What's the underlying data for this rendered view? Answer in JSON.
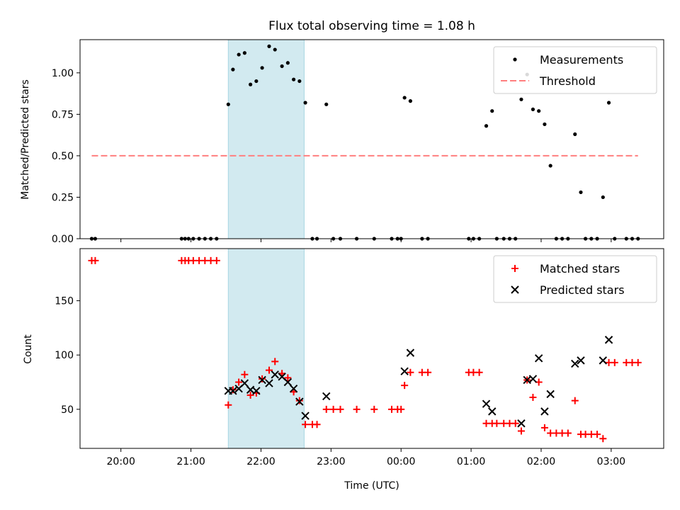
{
  "chart_data": [
    {
      "type": "scatter",
      "title": "Flux total observing time = 1.08 h",
      "ylabel": "Matched/Predicted stars",
      "xlabel": "",
      "ylim": [
        0,
        1.2
      ],
      "yticks": [
        0.0,
        0.25,
        0.5,
        0.75,
        1.0
      ],
      "ytick_labels": [
        "0.00",
        "0.25",
        "0.50",
        "0.75",
        "1.00"
      ],
      "x_range_hours": [
        "19:25",
        "03:45"
      ],
      "shaded_interval": {
        "start": "21:32",
        "end": "22:37",
        "color": "#d2eaf0"
      },
      "legend": {
        "placement": "top-right",
        "entries": [
          "Measurements",
          "Threshold"
        ]
      },
      "series": [
        {
          "name": "Measurements",
          "color": "#000000",
          "marker": "dot",
          "points": [
            [
              "19:35",
              0.0
            ],
            [
              "19:38",
              0.0
            ],
            [
              "20:52",
              0.0
            ],
            [
              "20:55",
              0.0
            ],
            [
              "20:58",
              0.0
            ],
            [
              "21:02",
              0.0
            ],
            [
              "21:07",
              0.0
            ],
            [
              "21:12",
              0.0
            ],
            [
              "21:17",
              0.0
            ],
            [
              "21:22",
              0.0
            ],
            [
              "21:32",
              0.81
            ],
            [
              "21:36",
              1.02
            ],
            [
              "21:41",
              1.11
            ],
            [
              "21:46",
              1.12
            ],
            [
              "21:51",
              0.93
            ],
            [
              "21:56",
              0.95
            ],
            [
              "22:01",
              1.03
            ],
            [
              "22:07",
              1.16
            ],
            [
              "22:12",
              1.14
            ],
            [
              "22:18",
              1.04
            ],
            [
              "22:23",
              1.06
            ],
            [
              "22:28",
              0.96
            ],
            [
              "22:33",
              0.95
            ],
            [
              "22:38",
              0.82
            ],
            [
              "22:44",
              0.0
            ],
            [
              "22:48",
              0.0
            ],
            [
              "22:56",
              0.81
            ],
            [
              "23:02",
              0.0
            ],
            [
              "23:08",
              0.0
            ],
            [
              "23:22",
              0.0
            ],
            [
              "23:37",
              0.0
            ],
            [
              "23:52",
              0.0
            ],
            [
              "23:57",
              0.0
            ],
            [
              "00:00",
              0.0
            ],
            [
              "00:03",
              0.85
            ],
            [
              "00:08",
              0.83
            ],
            [
              "00:18",
              0.0
            ],
            [
              "00:23",
              0.0
            ],
            [
              "00:58",
              0.0
            ],
            [
              "01:02",
              0.0
            ],
            [
              "01:07",
              0.0
            ],
            [
              "01:13",
              0.68
            ],
            [
              "01:18",
              0.77
            ],
            [
              "01:22",
              0.0
            ],
            [
              "01:28",
              0.0
            ],
            [
              "01:33",
              0.0
            ],
            [
              "01:38",
              0.0
            ],
            [
              "01:43",
              0.84
            ],
            [
              "01:48",
              0.99
            ],
            [
              "01:53",
              0.78
            ],
            [
              "01:58",
              0.77
            ],
            [
              "02:03",
              0.69
            ],
            [
              "02:08",
              0.44
            ],
            [
              "02:13",
              0.0
            ],
            [
              "02:18",
              0.0
            ],
            [
              "02:23",
              0.0
            ],
            [
              "02:29",
              0.63
            ],
            [
              "02:34",
              0.28
            ],
            [
              "02:38",
              0.0
            ],
            [
              "02:43",
              0.0
            ],
            [
              "02:48",
              0.0
            ],
            [
              "02:53",
              0.25
            ],
            [
              "02:58",
              0.82
            ],
            [
              "03:03",
              0.0
            ],
            [
              "03:13",
              0.0
            ],
            [
              "03:18",
              0.0
            ],
            [
              "03:23",
              0.0
            ]
          ]
        },
        {
          "name": "Threshold",
          "color": "#ff7f7f",
          "style": "dashed",
          "points": [
            [
              "19:35",
              0.5
            ],
            [
              "03:23",
              0.5
            ]
          ]
        }
      ]
    },
    {
      "type": "scatter",
      "title": "",
      "ylabel": "Count",
      "xlabel": "Time (UTC)",
      "ylim": [
        14,
        198
      ],
      "yticks": [
        50,
        100,
        150
      ],
      "ytick_labels": [
        "50",
        "100",
        "150"
      ],
      "x_range_hours": [
        "19:25",
        "03:45"
      ],
      "xticks": [
        "20:00",
        "21:00",
        "22:00",
        "23:00",
        "00:00",
        "01:00",
        "02:00",
        "03:00"
      ],
      "shaded_interval": {
        "start": "21:32",
        "end": "22:37",
        "color": "#d2eaf0"
      },
      "legend": {
        "placement": "top-right",
        "entries": [
          "Matched stars",
          "Predicted stars"
        ]
      },
      "series": [
        {
          "name": "Matched stars",
          "color": "#ff0000",
          "marker": "plus",
          "points": [
            [
              "19:35",
              187
            ],
            [
              "19:38",
              187
            ],
            [
              "20:52",
              187
            ],
            [
              "20:55",
              187
            ],
            [
              "20:58",
              187
            ],
            [
              "21:02",
              187
            ],
            [
              "21:07",
              187
            ],
            [
              "21:12",
              187
            ],
            [
              "21:17",
              187
            ],
            [
              "21:22",
              187
            ],
            [
              "21:32",
              54
            ],
            [
              "21:36",
              68
            ],
            [
              "21:41",
              75
            ],
            [
              "21:46",
              82
            ],
            [
              "21:51",
              63
            ],
            [
              "21:56",
              65
            ],
            [
              "22:01",
              78
            ],
            [
              "22:07",
              86
            ],
            [
              "22:12",
              94
            ],
            [
              "22:18",
              83
            ],
            [
              "22:23",
              79
            ],
            [
              "22:28",
              66
            ],
            [
              "22:33",
              58
            ],
            [
              "22:38",
              36
            ],
            [
              "22:44",
              36
            ],
            [
              "22:48",
              36
            ],
            [
              "22:56",
              50
            ],
            [
              "23:02",
              50
            ],
            [
              "23:08",
              50
            ],
            [
              "23:22",
              50
            ],
            [
              "23:37",
              50
            ],
            [
              "23:52",
              50
            ],
            [
              "23:57",
              50
            ],
            [
              "00:00",
              50
            ],
            [
              "00:03",
              72
            ],
            [
              "00:08",
              84
            ],
            [
              "00:18",
              84
            ],
            [
              "00:23",
              84
            ],
            [
              "00:58",
              84
            ],
            [
              "01:02",
              84
            ],
            [
              "01:07",
              84
            ],
            [
              "01:13",
              37
            ],
            [
              "01:18",
              37
            ],
            [
              "01:22",
              37
            ],
            [
              "01:28",
              37
            ],
            [
              "01:33",
              37
            ],
            [
              "01:38",
              37
            ],
            [
              "01:43",
              30
            ],
            [
              "01:48",
              77
            ],
            [
              "01:53",
              61
            ],
            [
              "01:58",
              75
            ],
            [
              "02:03",
              33
            ],
            [
              "02:08",
              28
            ],
            [
              "02:13",
              28
            ],
            [
              "02:18",
              28
            ],
            [
              "02:23",
              28
            ],
            [
              "02:29",
              58
            ],
            [
              "02:34",
              27
            ],
            [
              "02:38",
              27
            ],
            [
              "02:43",
              27
            ],
            [
              "02:48",
              27
            ],
            [
              "02:53",
              23
            ],
            [
              "02:58",
              93
            ],
            [
              "03:03",
              93
            ],
            [
              "03:13",
              93
            ],
            [
              "03:18",
              93
            ],
            [
              "03:23",
              93
            ]
          ]
        },
        {
          "name": "Predicted stars",
          "color": "#000000",
          "marker": "x",
          "points": [
            [
              "21:32",
              67
            ],
            [
              "21:36",
              67
            ],
            [
              "21:41",
              69
            ],
            [
              "21:46",
              74
            ],
            [
              "21:51",
              68
            ],
            [
              "21:56",
              67
            ],
            [
              "22:01",
              77
            ],
            [
              "22:07",
              74
            ],
            [
              "22:12",
              82
            ],
            [
              "22:18",
              80
            ],
            [
              "22:23",
              75
            ],
            [
              "22:28",
              69
            ],
            [
              "22:33",
              57
            ],
            [
              "22:38",
              44
            ],
            [
              "22:56",
              62
            ],
            [
              "00:03",
              85
            ],
            [
              "00:08",
              102
            ],
            [
              "01:13",
              55
            ],
            [
              "01:18",
              48
            ],
            [
              "01:43",
              37
            ],
            [
              "01:48",
              77
            ],
            [
              "01:53",
              78
            ],
            [
              "01:58",
              97
            ],
            [
              "02:03",
              48
            ],
            [
              "02:08",
              64
            ],
            [
              "02:29",
              92
            ],
            [
              "02:34",
              95
            ],
            [
              "02:53",
              95
            ],
            [
              "02:58",
              114
            ]
          ]
        }
      ]
    }
  ]
}
